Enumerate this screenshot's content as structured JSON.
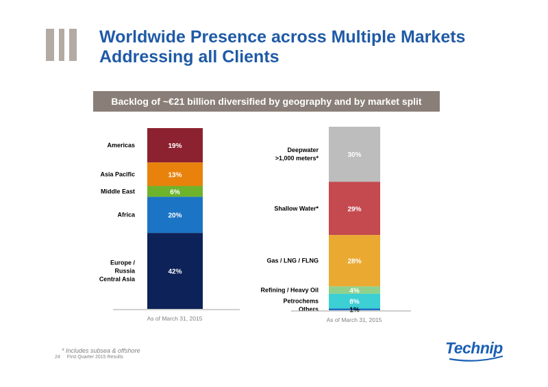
{
  "page": {
    "title_line1": "Worldwide Presence across Multiple Markets",
    "title_line2": "Addressing all Clients",
    "banner": "Backlog of ~€21 billion diversified by geography and by market split",
    "footnote": "* Includes subsea & offshore",
    "page_number": "24",
    "footer_text": "First Quarter 2015 Results",
    "logo_text": "Technip"
  },
  "colors": {
    "title": "#1f5aa6",
    "banner": "#8a7f78",
    "logo": "#1a5fb4"
  },
  "chart_data": [
    {
      "type": "bar",
      "stacked": true,
      "xlabel": "As of March 31, 2015",
      "unit": "%",
      "segments": [
        {
          "name": "Americas",
          "value": 19,
          "label": "19%",
          "color": "#8c2130",
          "text_color": "#ffffff"
        },
        {
          "name": "Asia Pacific",
          "value": 13,
          "label": "13%",
          "color": "#e8820c",
          "text_color": "#ffffff"
        },
        {
          "name": "Middle East",
          "value": 6,
          "label": "6%",
          "color": "#6db32c",
          "text_color": "#ffffff"
        },
        {
          "name": "Africa",
          "value": 20,
          "label": "20%",
          "color": "#1c74c4",
          "text_color": "#ffffff"
        },
        {
          "name": "Europe / Russia Central Asia",
          "display_lines": [
            "Europe /",
            "Russia",
            "Central Asia"
          ],
          "value": 42,
          "label": "42%",
          "color": "#0d2258",
          "text_color": "#ffffff"
        }
      ]
    },
    {
      "type": "bar",
      "stacked": true,
      "xlabel": "As of March 31, 2015",
      "unit": "%",
      "segments": [
        {
          "name": "Deepwater >1,000 meters*",
          "display_lines": [
            "Deepwater",
            ">1,000 meters*"
          ],
          "value": 30,
          "label": "30%",
          "color": "#bdbdbd",
          "text_color": "#ffffff"
        },
        {
          "name": "Shallow Water*",
          "value": 29,
          "label": "29%",
          "color": "#c44a50",
          "text_color": "#ffffff"
        },
        {
          "name": "Gas / LNG / FLNG",
          "value": 28,
          "label": "28%",
          "color": "#eaaa32",
          "text_color": "#ffffff"
        },
        {
          "name": "Refining / Heavy Oil",
          "value": 4,
          "label": "4%",
          "color": "#8fd18c",
          "text_color": "#ffffff"
        },
        {
          "name": "Petrochems",
          "value": 8,
          "label": "8%",
          "color": "#3ccfd4",
          "text_color": "#ffffff"
        },
        {
          "name": "Others",
          "value": 1,
          "label": "1%",
          "color": "#1c6fc2",
          "text_color": "#000000"
        }
      ]
    }
  ]
}
